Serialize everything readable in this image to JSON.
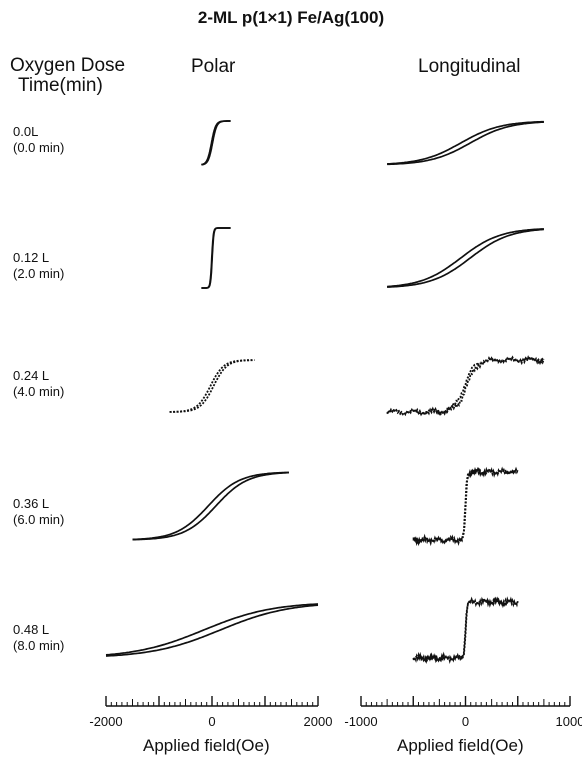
{
  "title": "2-ML p(1×1) Fe/Ag(100)",
  "headers": {
    "dose_line1": "Oxygen Dose",
    "dose_line2": "Time(min)",
    "polar": "Polar",
    "longitudinal": "Longitudinal"
  },
  "rows": [
    {
      "dose": "0.0L",
      "time": "(0.0 min)"
    },
    {
      "dose": "0.12 L",
      "time": "(2.0 min)"
    },
    {
      "dose": "0.24 L",
      "time": "(4.0 min)"
    },
    {
      "dose": "0.36 L",
      "time": "(6.0 min)"
    },
    {
      "dose": "0.48 L",
      "time": "(8.0 min)"
    }
  ],
  "chart_data": [
    {
      "type": "line",
      "panel": "Polar",
      "xlabel": "Applied field(Oe)",
      "xlim": [
        -2000,
        2000
      ],
      "ticks": [
        -2000,
        0,
        2000
      ],
      "tick_labels": [
        "-2000",
        "0",
        "2000"
      ],
      "series": [
        {
          "name": "0.0L (0.0 min)",
          "x_range": [
            -200,
            350
          ],
          "relative_width_Oe": 80
        },
        {
          "name": "0.12 L (2.0 min)",
          "x_range": [
            -200,
            350
          ],
          "relative_width_Oe": 30
        },
        {
          "name": "0.24 L (4.0 min)",
          "x_range": [
            -800,
            800
          ],
          "relative_width_Oe": 250
        },
        {
          "name": "0.36 L (6.0 min)",
          "x_range": [
            -1500,
            1450
          ],
          "relative_width_Oe": 600
        },
        {
          "name": "0.48 L (8.0 min)",
          "x_range": [
            -2000,
            2000
          ],
          "relative_width_Oe": 1300
        }
      ]
    },
    {
      "type": "line",
      "panel": "Longitudinal",
      "xlabel": "Applied field(Oe)",
      "xlim": [
        -1000,
        1000
      ],
      "ticks": [
        -1000,
        0,
        1000
      ],
      "tick_labels": [
        "-1000",
        "0",
        "1000"
      ],
      "series": [
        {
          "name": "0.0L (0.0 min)",
          "x_range": [
            -750,
            750
          ],
          "relative_width_Oe": 380
        },
        {
          "name": "0.12 L (2.0 min)",
          "x_range": [
            -750,
            750
          ],
          "relative_width_Oe": 380
        },
        {
          "name": "0.24 L (4.0 min)",
          "x_range": [
            -750,
            750
          ],
          "relative_width_Oe": 100
        },
        {
          "name": "0.36 L (6.0 min)",
          "x_range": [
            -500,
            500
          ],
          "relative_width_Oe": 15
        },
        {
          "name": "0.48 L (8.0 min)",
          "x_range": [
            -500,
            500
          ],
          "relative_width_Oe": 15
        }
      ]
    }
  ]
}
